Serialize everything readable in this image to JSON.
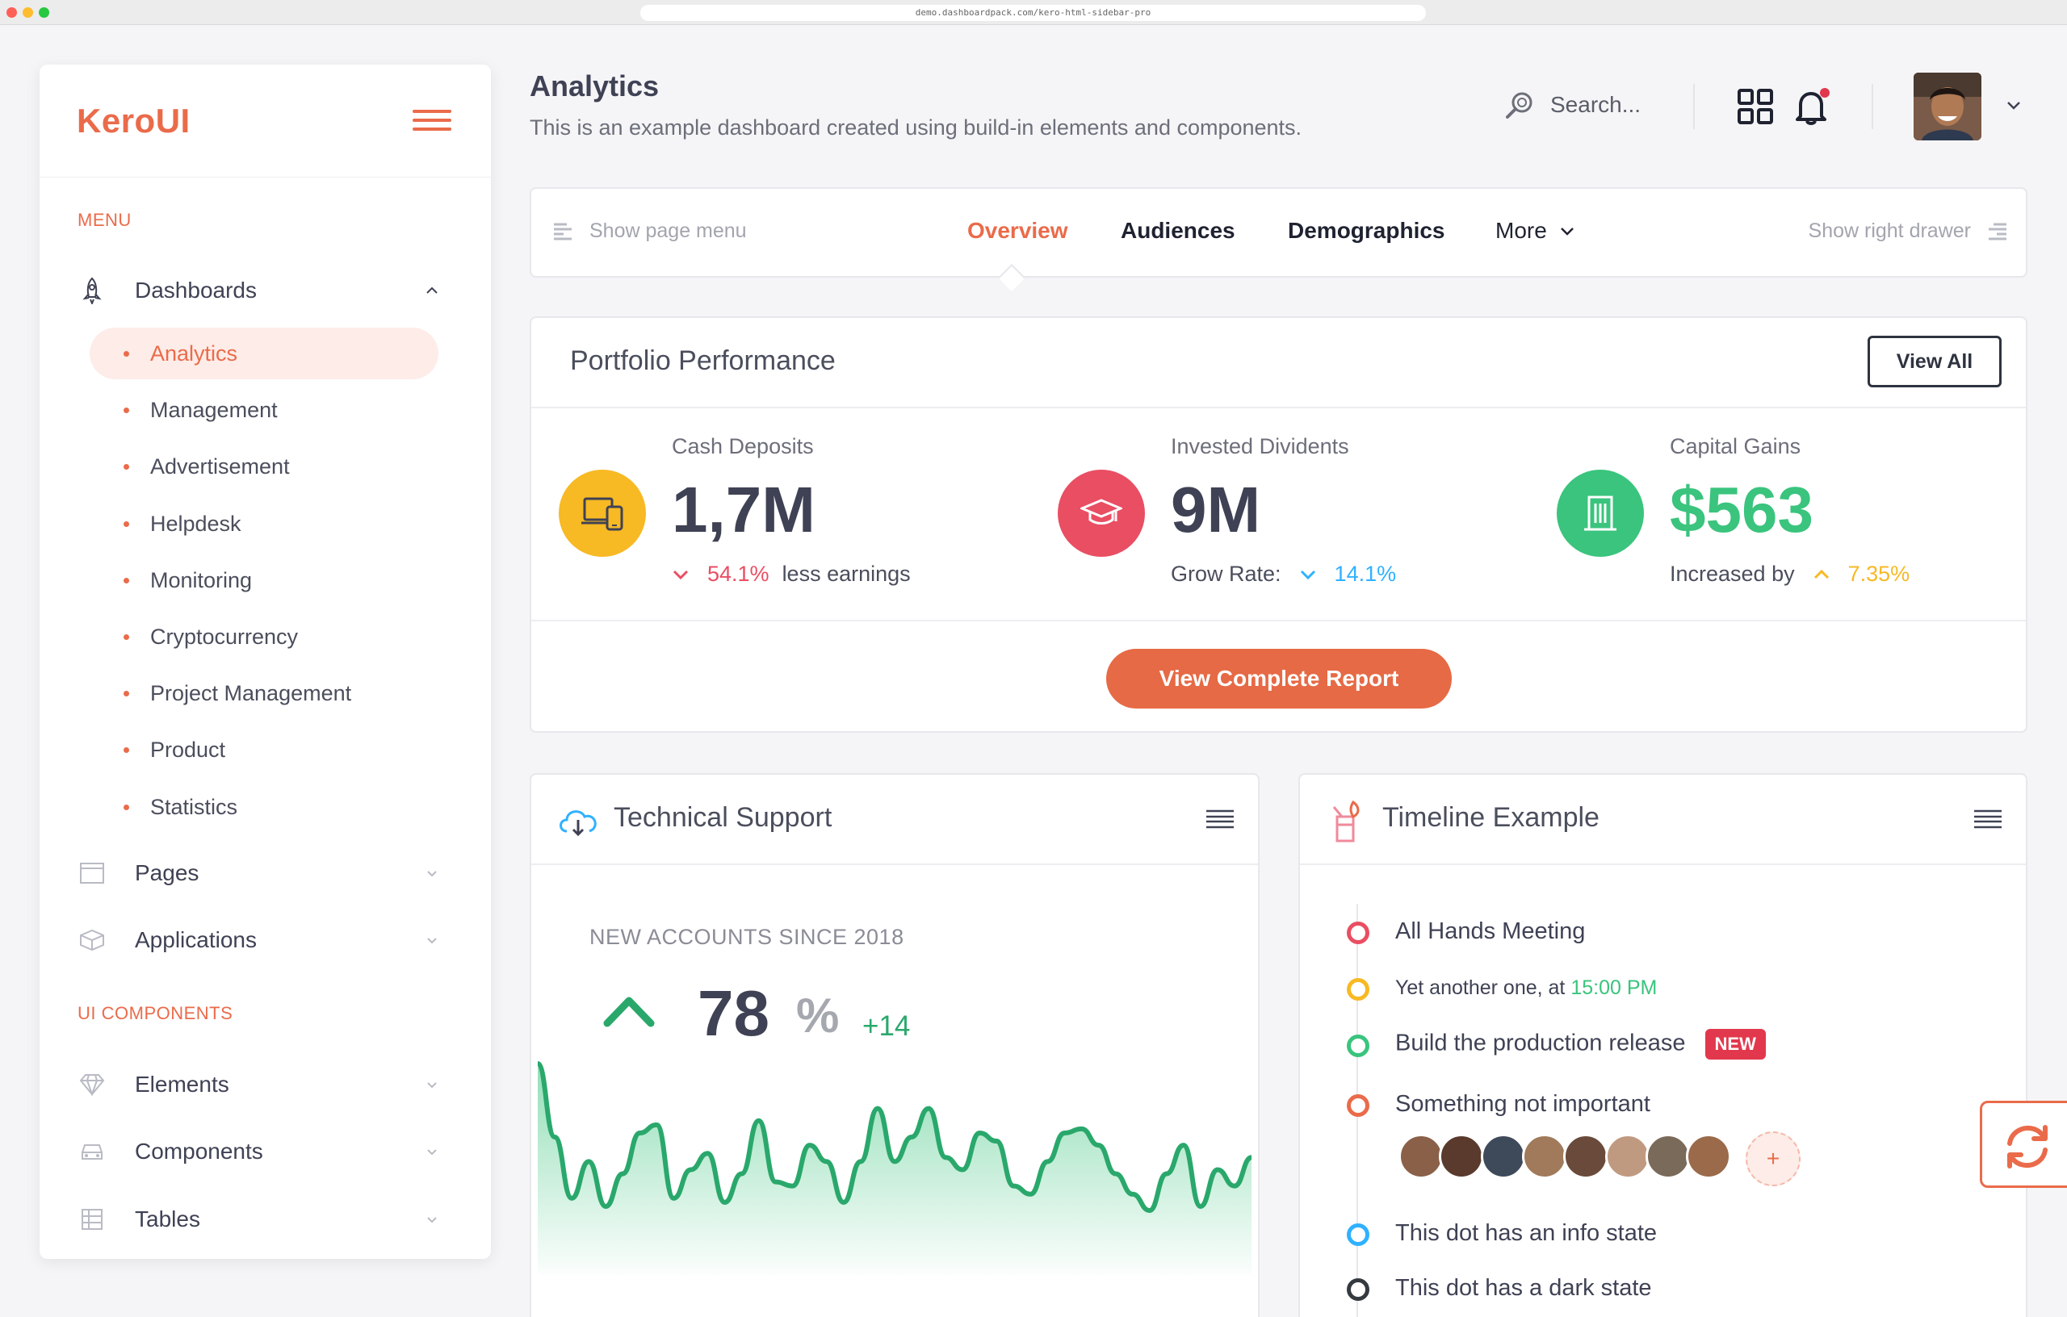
{
  "browser": {
    "url": "demo.dashboardpack.com/kero-html-sidebar-pro"
  },
  "brand": {
    "logo": "KeroUI",
    "accent": "#ea6b4a"
  },
  "sidebar": {
    "menu_label": "MENU",
    "dashboards": {
      "label": "Dashboards",
      "items": [
        {
          "label": "Analytics"
        },
        {
          "label": "Management"
        },
        {
          "label": "Advertisement"
        },
        {
          "label": "Helpdesk"
        },
        {
          "label": "Monitoring"
        },
        {
          "label": "Cryptocurrency"
        },
        {
          "label": "Project Management"
        },
        {
          "label": "Product"
        },
        {
          "label": "Statistics"
        }
      ]
    },
    "pages": {
      "label": "Pages"
    },
    "applications": {
      "label": "Applications"
    },
    "ui_label": "UI COMPONENTS",
    "elements": {
      "label": "Elements"
    },
    "components": {
      "label": "Components"
    },
    "tables": {
      "label": "Tables"
    }
  },
  "header": {
    "title": "Analytics",
    "subtitle": "This is an example dashboard created using build-in elements and components.",
    "search_placeholder": "Search..."
  },
  "tabs": {
    "page_menu": "Show page menu",
    "items": [
      {
        "label": "Overview"
      },
      {
        "label": "Audiences"
      },
      {
        "label": "Demographics"
      },
      {
        "label": "More"
      }
    ],
    "right_drawer": "Show right drawer"
  },
  "portfolio": {
    "title": "Portfolio Performance",
    "view_all": "View All",
    "stats": [
      {
        "label": "Cash Deposits",
        "value": "1,7M",
        "delta": "54.1%",
        "foot": "less earnings",
        "color": "#f7b924"
      },
      {
        "label": "Invested Dividents",
        "value": "9M",
        "foot": "Grow Rate:",
        "delta": "14.1%",
        "color": "#e94e63"
      },
      {
        "label": "Capital Gains",
        "value": "$563",
        "foot": "Increased by",
        "delta": "7.35%",
        "color": "#3ac47d"
      }
    ],
    "cta": "View Complete Report"
  },
  "tech_support": {
    "title": "Technical Support",
    "label": "NEW ACCOUNTS SINCE 2018",
    "value": "78",
    "unit": "%",
    "delta": "+14",
    "sparkline": [
      88,
      52,
      22,
      40,
      18,
      34,
      54,
      58,
      22,
      36,
      44,
      20,
      34,
      60,
      30,
      28,
      48,
      40,
      20,
      40,
      66,
      40,
      52,
      66,
      42,
      36,
      54,
      50,
      28,
      24,
      40,
      54,
      56,
      48,
      34,
      24,
      16,
      34,
      48,
      18,
      36,
      28,
      42
    ]
  },
  "timeline": {
    "title": "Timeline Example",
    "items": [
      {
        "text": "All Hands Meeting",
        "color": "#e94e63"
      },
      {
        "text": "Yet another one, at ",
        "time": "15:00 PM",
        "color": "#f7b924"
      },
      {
        "text": "Build the production release",
        "badge": "NEW",
        "color": "#3ac47d"
      },
      {
        "text": "Something not important",
        "color": "#ea6b4a"
      },
      {
        "text": "This dot has an info state",
        "color": "#30b1ff"
      },
      {
        "text": "This dot has a dark state",
        "color": "#343a40"
      }
    ],
    "add_label": "+"
  }
}
